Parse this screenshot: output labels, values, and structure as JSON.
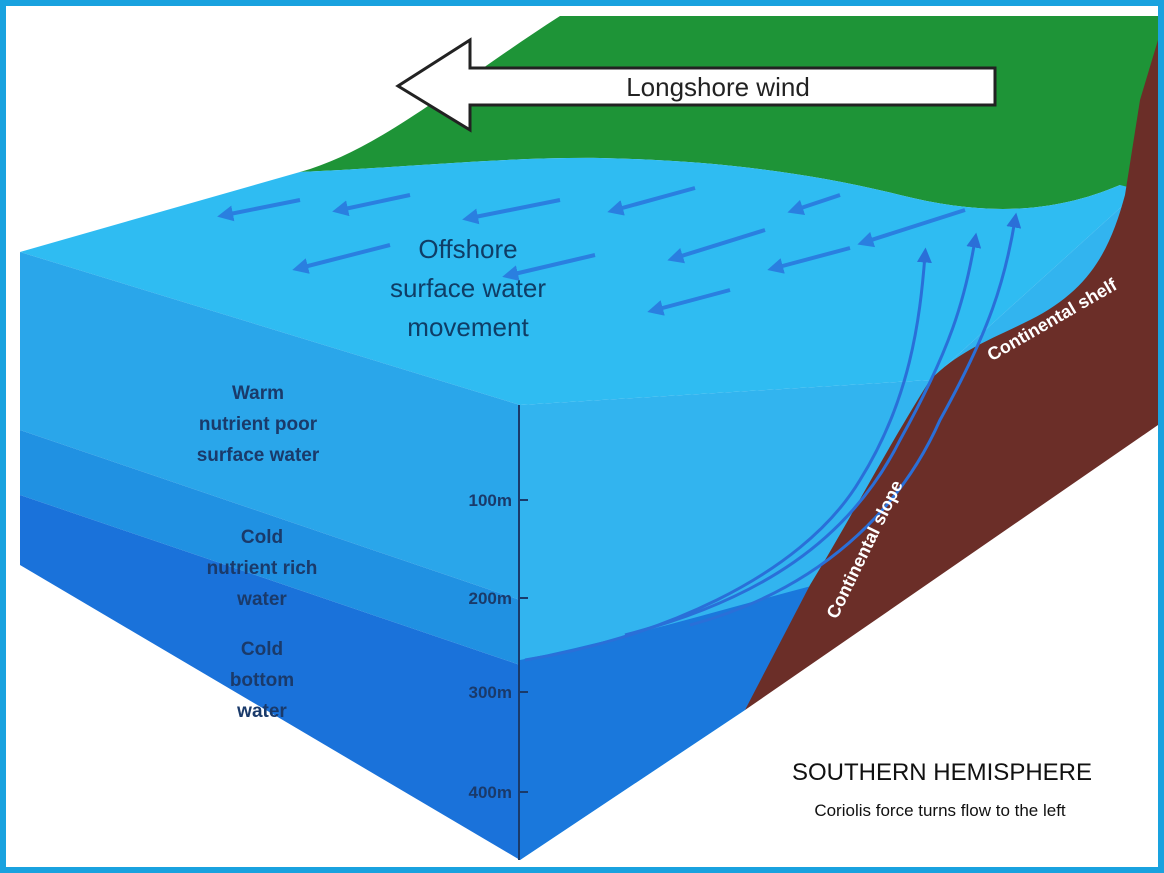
{
  "wind": "Longshore wind",
  "surface_movement": [
    "Offshore",
    "surface water",
    "movement"
  ],
  "layers": [
    [
      "Warm",
      "nutrient poor",
      "surface water"
    ],
    [
      "Cold",
      "nutrient rich",
      "water"
    ],
    [
      "Cold",
      "bottom",
      "water"
    ]
  ],
  "depths": [
    "100m",
    "200m",
    "300m",
    "400m"
  ],
  "continental_shelf": "Continental shelf",
  "continental_slope": "Continental slope",
  "hemisphere": "SOUTHERN HEMISPHERE",
  "note": "Coriolis force turns flow to the left"
}
